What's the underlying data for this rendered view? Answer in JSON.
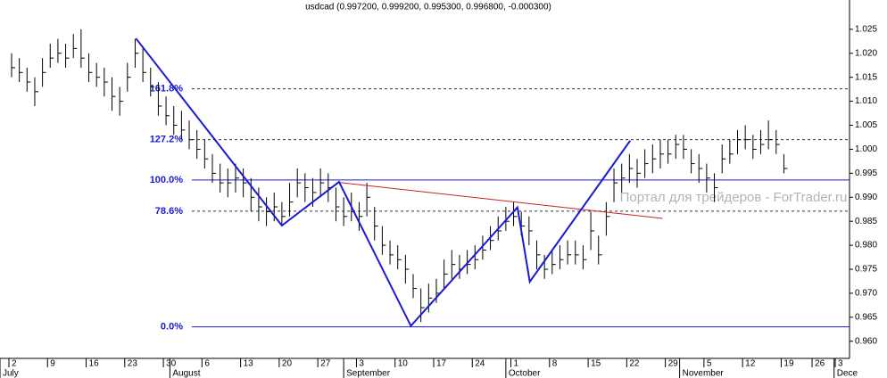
{
  "chart_data": {
    "type": "ohlc",
    "title": "usdcad (0.997200, 0.999200, 0.995300, 0.996800, -0.000300)",
    "watermark": "Портал для трейдеров - ForTrader.ru",
    "color": "#000000",
    "high": [
      1.02,
      1.019,
      1.017,
      1.015,
      1.019,
      1.022,
      1.023,
      1.022,
      1.024,
      1.025,
      1.02,
      1.018,
      1.017,
      1.015,
      1.013,
      1.018,
      1.023,
      1.021,
      1.017,
      1.014,
      1.011,
      1.009,
      1.008,
      1.006,
      1.004,
      1.002,
      0.999,
      0.997,
      0.996,
      0.997,
      0.996,
      0.994,
      0.992,
      0.99,
      0.991,
      0.989,
      0.993,
      0.996,
      0.995,
      0.994,
      0.996,
      0.995,
      0.992,
      0.99,
      0.991,
      0.989,
      0.993,
      0.988,
      0.984,
      0.981,
      0.98,
      0.978,
      0.974,
      0.971,
      0.972,
      0.973,
      0.977,
      0.979,
      0.978,
      0.979,
      0.98,
      0.982,
      0.984,
      0.986,
      0.988,
      0.989,
      0.987,
      0.986,
      0.981,
      0.978,
      0.979,
      0.98,
      0.981,
      0.981,
      0.98,
      0.987,
      0.982,
      0.989,
      0.996,
      0.997,
      0.999,
      0.998,
      1.0,
      1.001,
      1.002,
      1.002,
      1.003,
      1.003,
      1.0,
      0.999,
      0.997,
      0.995,
      1.001,
      1.002,
      1.004,
      1.005,
      1.003,
      1.004,
      1.006,
      1.004,
      0.999
    ],
    "low": [
      1.015,
      1.014,
      1.012,
      1.009,
      1.013,
      1.017,
      1.018,
      1.017,
      1.019,
      1.017,
      1.014,
      1.013,
      1.011,
      1.008,
      1.007,
      1.012,
      1.017,
      1.014,
      1.011,
      1.007,
      1.005,
      1.003,
      1.002,
      1.0,
      0.998,
      0.996,
      0.993,
      0.991,
      0.99,
      0.991,
      0.99,
      0.987,
      0.985,
      0.984,
      0.985,
      0.984,
      0.986,
      0.99,
      0.989,
      0.988,
      0.99,
      0.989,
      0.985,
      0.984,
      0.985,
      0.983,
      0.986,
      0.981,
      0.978,
      0.976,
      0.975,
      0.972,
      0.969,
      0.964,
      0.966,
      0.968,
      0.971,
      0.973,
      0.973,
      0.974,
      0.975,
      0.977,
      0.979,
      0.981,
      0.983,
      0.984,
      0.982,
      0.98,
      0.975,
      0.973,
      0.974,
      0.975,
      0.976,
      0.976,
      0.975,
      0.979,
      0.976,
      0.982,
      0.989,
      0.991,
      0.993,
      0.992,
      0.994,
      0.995,
      0.996,
      0.997,
      0.998,
      0.998,
      0.995,
      0.993,
      0.991,
      0.989,
      0.995,
      0.997,
      0.999,
      1.0,
      0.998,
      0.999,
      1.0,
      0.999,
      0.995
    ],
    "close": [
      1.017,
      1.016,
      1.014,
      1.012,
      1.016,
      1.019,
      1.02,
      1.019,
      1.021,
      1.019,
      1.016,
      1.015,
      1.014,
      1.011,
      1.01,
      1.015,
      1.02,
      1.016,
      1.013,
      1.009,
      1.007,
      1.005,
      1.004,
      1.002,
      1.0,
      0.998,
      0.995,
      0.993,
      0.993,
      0.994,
      0.993,
      0.99,
      0.988,
      0.987,
      0.988,
      0.986,
      0.989,
      0.993,
      0.992,
      0.991,
      0.993,
      0.992,
      0.988,
      0.986,
      0.987,
      0.986,
      0.99,
      0.984,
      0.98,
      0.978,
      0.977,
      0.975,
      0.971,
      0.967,
      0.969,
      0.97,
      0.974,
      0.976,
      0.975,
      0.976,
      0.977,
      0.979,
      0.981,
      0.983,
      0.985,
      0.986,
      0.984,
      0.983,
      0.978,
      0.975,
      0.976,
      0.977,
      0.978,
      0.978,
      0.977,
      0.983,
      0.978,
      0.986,
      0.993,
      0.994,
      0.996,
      0.995,
      0.997,
      0.998,
      0.999,
      0.999,
      1.001,
      1.0,
      0.997,
      0.996,
      0.994,
      0.992,
      0.998,
      0.999,
      1.002,
      1.002,
      1.0,
      1.001,
      1.002,
      1.001,
      0.996
    ],
    "xlim": [
      -1.5,
      108.5
    ],
    "xticks": [
      {
        "value": 0,
        "label": "2"
      },
      {
        "value": 5,
        "label": "9"
      },
      {
        "value": 10,
        "label": "16"
      },
      {
        "value": 15,
        "label": "23"
      },
      {
        "value": 20,
        "label": "30"
      },
      {
        "value": 25,
        "label": "6"
      },
      {
        "value": 30,
        "label": "13"
      },
      {
        "value": 35,
        "label": "20"
      },
      {
        "value": 40,
        "label": "27"
      },
      {
        "value": 45,
        "label": "3"
      },
      {
        "value": 50,
        "label": "10"
      },
      {
        "value": 55,
        "label": "17"
      },
      {
        "value": 60,
        "label": "24"
      },
      {
        "value": 65,
        "label": "1"
      },
      {
        "value": 70,
        "label": "8"
      },
      {
        "value": 75,
        "label": "15"
      },
      {
        "value": 80,
        "label": "22"
      },
      {
        "value": 85,
        "label": "29"
      },
      {
        "value": 90,
        "label": "5"
      },
      {
        "value": 95,
        "label": "12"
      },
      {
        "value": 100,
        "label": "19"
      },
      {
        "value": 104,
        "label": "26"
      },
      {
        "value": 107,
        "label": "3"
      }
    ],
    "months": [
      {
        "value": -1.5,
        "label": "July"
      },
      {
        "value": 20.5,
        "label": "August"
      },
      {
        "value": 43,
        "label": "September"
      },
      {
        "value": 64,
        "label": "October"
      },
      {
        "value": 86.5,
        "label": "November"
      },
      {
        "value": 106.5,
        "label": "Dece"
      }
    ],
    "ylim": [
      0.9568,
      1.0311
    ],
    "yticks": [
      1.025,
      {
        "value": 1.02,
        "label": "1.020"
      },
      1.015,
      {
        "value": 1.01,
        "label": "1.010"
      },
      1.005,
      {
        "value": 1.0,
        "label": "1.000"
      },
      0.995,
      {
        "value": 0.99,
        "label": "0.990"
      },
      0.985,
      {
        "value": 0.98,
        "label": "0.980"
      },
      0.975,
      {
        "value": 0.97,
        "label": "0.970"
      },
      0.965,
      {
        "value": 0.96,
        "label": "0.960"
      }
    ],
    "levels": [
      {
        "label": "161.8%",
        "value": 1.0126,
        "style": "dashed"
      },
      {
        "label": "127.2%",
        "value": 1.002,
        "style": "dashed"
      },
      {
        "label": "100.0%",
        "value": 0.9936,
        "style": "solid"
      },
      {
        "label": "78.6%",
        "value": 0.9871,
        "style": "dashed"
      },
      {
        "label": "0.0%",
        "value": 0.963,
        "style": "solid"
      }
    ],
    "level_color": "#1a1ad6",
    "zigzag": {
      "color": "#1a1ad6",
      "x": [
        16.1,
        35.0,
        42.4,
        51.7,
        65.5,
        67.1,
        80.1
      ],
      "values": [
        1.0231,
        0.9841,
        0.9932,
        0.9632,
        0.9879,
        0.9724,
        1.0018
      ]
    },
    "trendline": {
      "color": "#cc2222",
      "x": [
        42.4,
        84.3
      ],
      "values": [
        0.9931,
        0.9856
      ]
    }
  }
}
